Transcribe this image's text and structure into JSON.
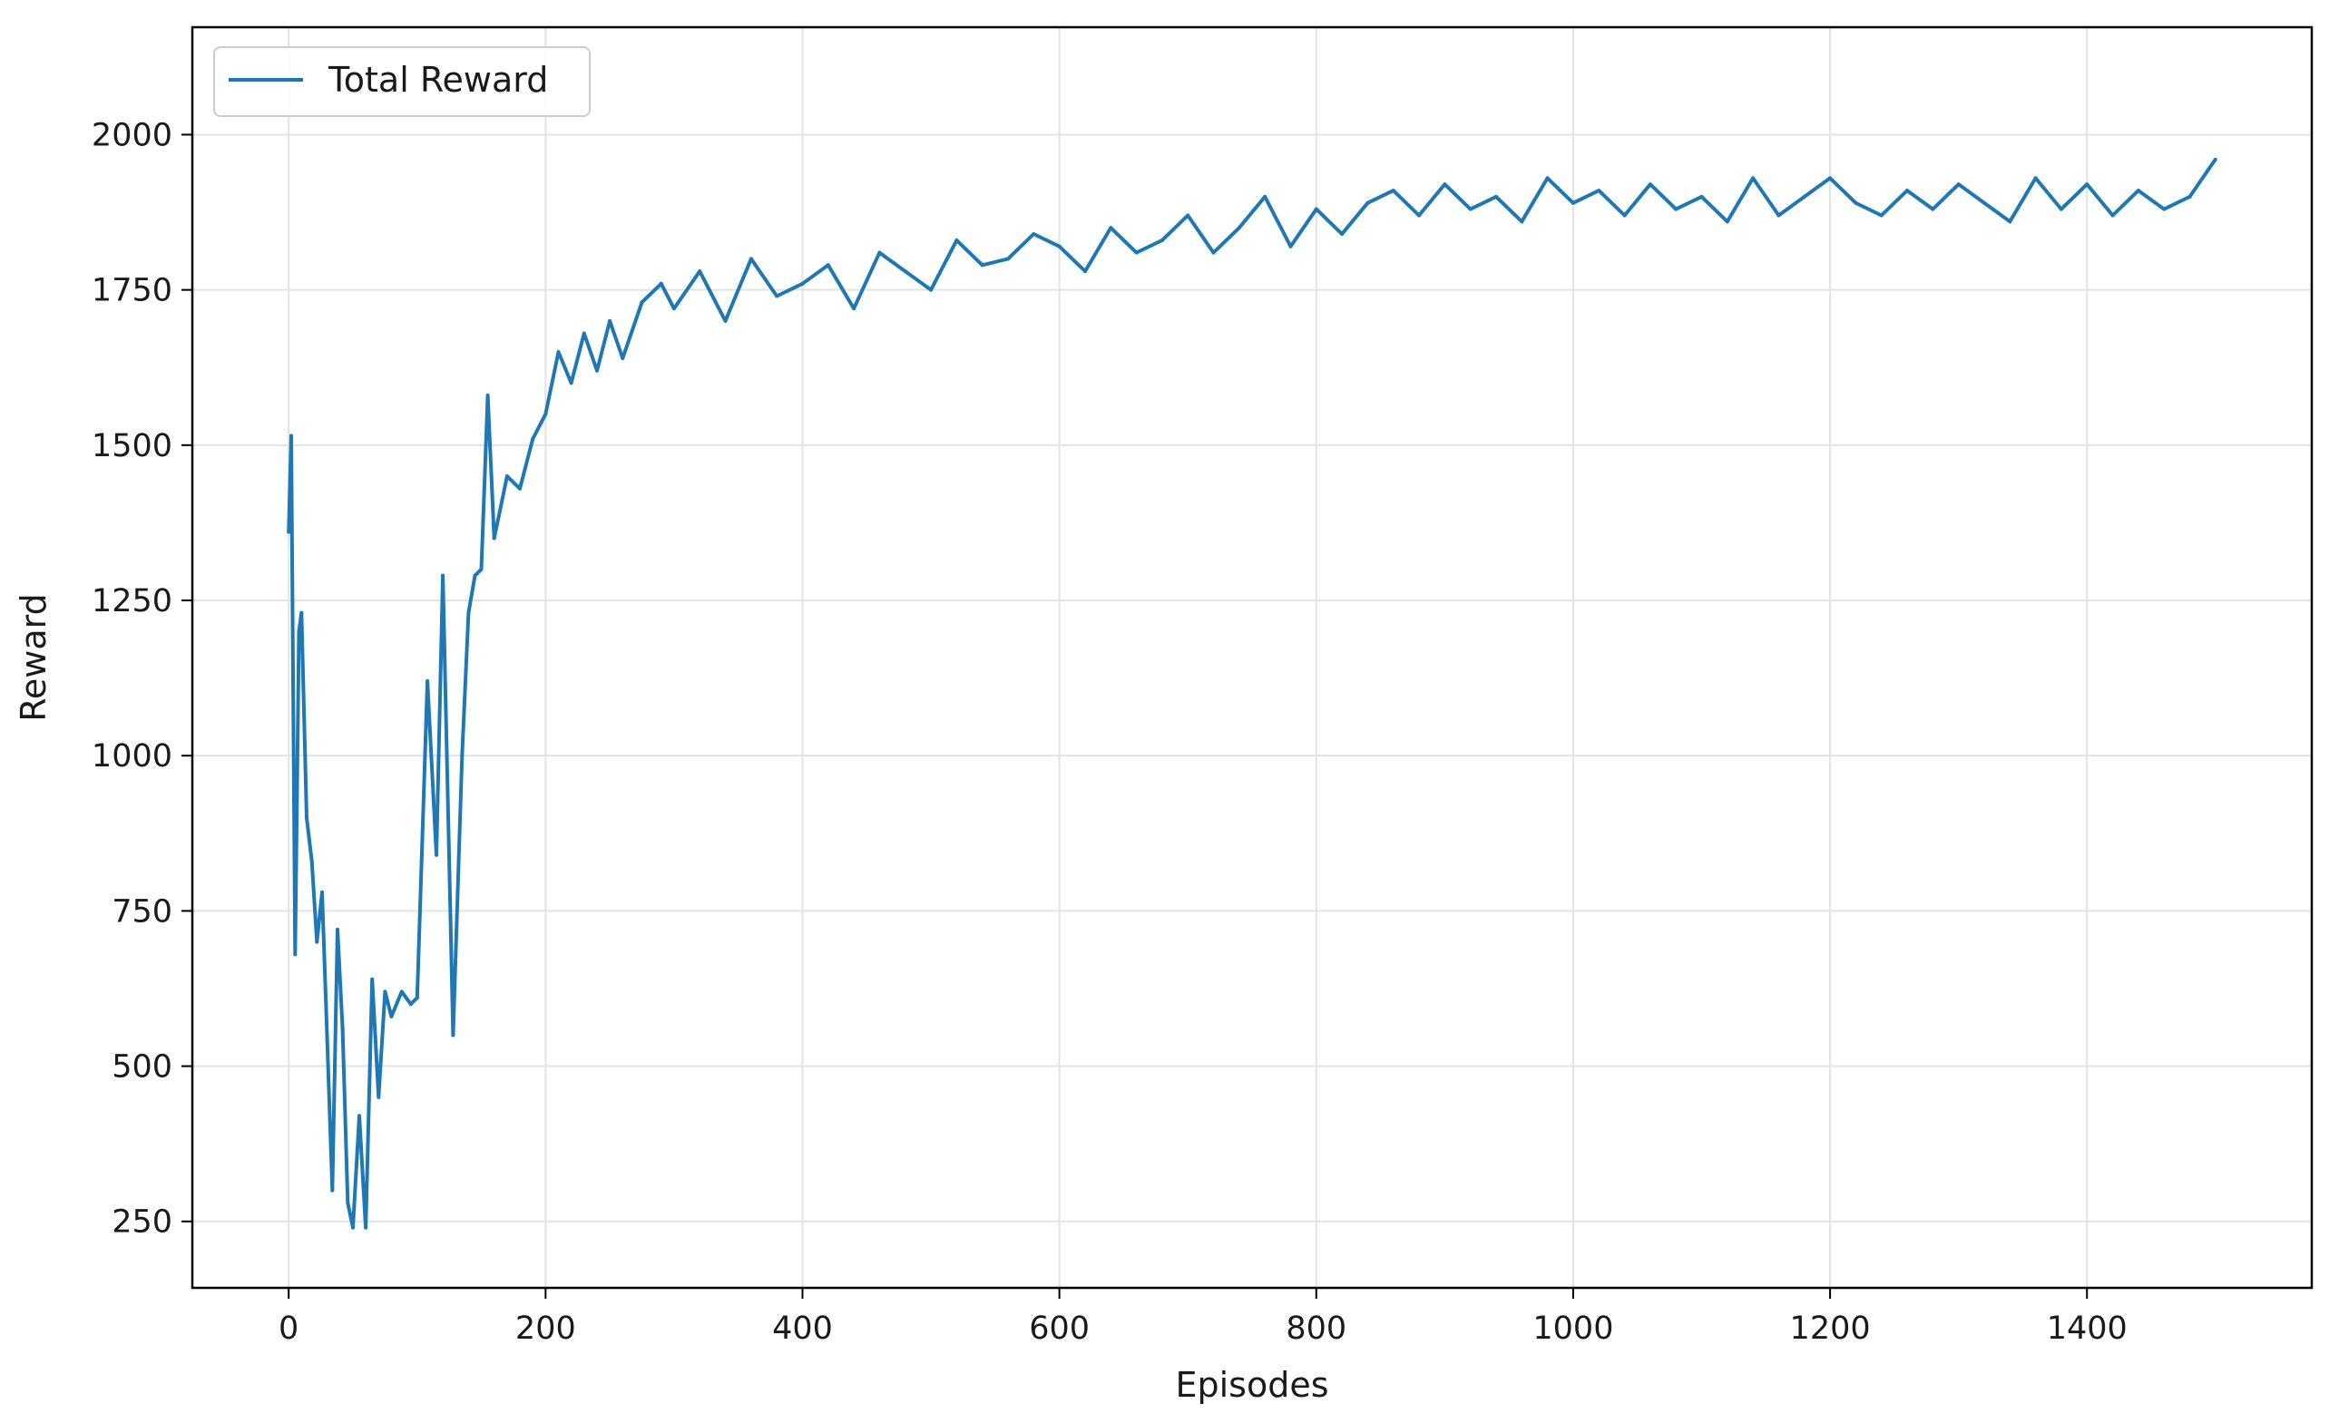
{
  "chart_data": {
    "type": "line",
    "title": "",
    "xlabel": "Episodes",
    "ylabel": "Reward",
    "xlim": [
      -75,
      1575
    ],
    "ylim": [
      143,
      2173
    ],
    "x_ticks": [
      0,
      200,
      400,
      600,
      800,
      1000,
      1200,
      1400
    ],
    "y_ticks": [
      250,
      500,
      750,
      1000,
      1250,
      1500,
      1750,
      2000
    ],
    "grid": true,
    "legend_position": "top-left",
    "series": [
      {
        "name": "Total Reward",
        "color": "#1f77b4",
        "x": [
          0,
          2,
          5,
          8,
          10,
          14,
          18,
          22,
          26,
          30,
          34,
          38,
          42,
          46,
          50,
          55,
          60,
          65,
          70,
          75,
          80,
          88,
          95,
          100,
          108,
          115,
          120,
          128,
          135,
          140,
          145,
          150,
          155,
          160,
          170,
          180,
          190,
          200,
          210,
          220,
          230,
          240,
          250,
          260,
          275,
          290,
          300,
          320,
          340,
          360,
          380,
          400,
          420,
          440,
          460,
          480,
          500,
          520,
          540,
          560,
          580,
          600,
          620,
          640,
          660,
          680,
          700,
          720,
          740,
          760,
          780,
          800,
          820,
          840,
          860,
          880,
          900,
          920,
          940,
          960,
          980,
          1000,
          1020,
          1040,
          1060,
          1080,
          1100,
          1120,
          1140,
          1160,
          1180,
          1200,
          1220,
          1240,
          1260,
          1280,
          1300,
          1320,
          1340,
          1360,
          1380,
          1400,
          1420,
          1440,
          1460,
          1480,
          1500
        ],
        "values": [
          1360,
          1515,
          680,
          1200,
          1230,
          900,
          830,
          700,
          780,
          540,
          300,
          720,
          560,
          280,
          240,
          420,
          240,
          640,
          450,
          620,
          580,
          620,
          600,
          610,
          1120,
          840,
          1290,
          550,
          1000,
          1230,
          1290,
          1300,
          1580,
          1350,
          1450,
          1430,
          1510,
          1550,
          1650,
          1600,
          1680,
          1620,
          1700,
          1640,
          1730,
          1760,
          1720,
          1780,
          1700,
          1800,
          1740,
          1760,
          1790,
          1720,
          1810,
          1780,
          1750,
          1830,
          1790,
          1800,
          1840,
          1820,
          1780,
          1850,
          1810,
          1830,
          1870,
          1810,
          1850,
          1900,
          1820,
          1880,
          1840,
          1890,
          1910,
          1870,
          1920,
          1880,
          1900,
          1860,
          1930,
          1890,
          1910,
          1870,
          1920,
          1880,
          1900,
          1860,
          1930,
          1870,
          1900,
          1930,
          1890,
          1870,
          1910,
          1880,
          1920,
          1890,
          1860,
          1930,
          1880,
          1920,
          1870,
          1910,
          1880,
          1900,
          1960
        ]
      }
    ]
  }
}
